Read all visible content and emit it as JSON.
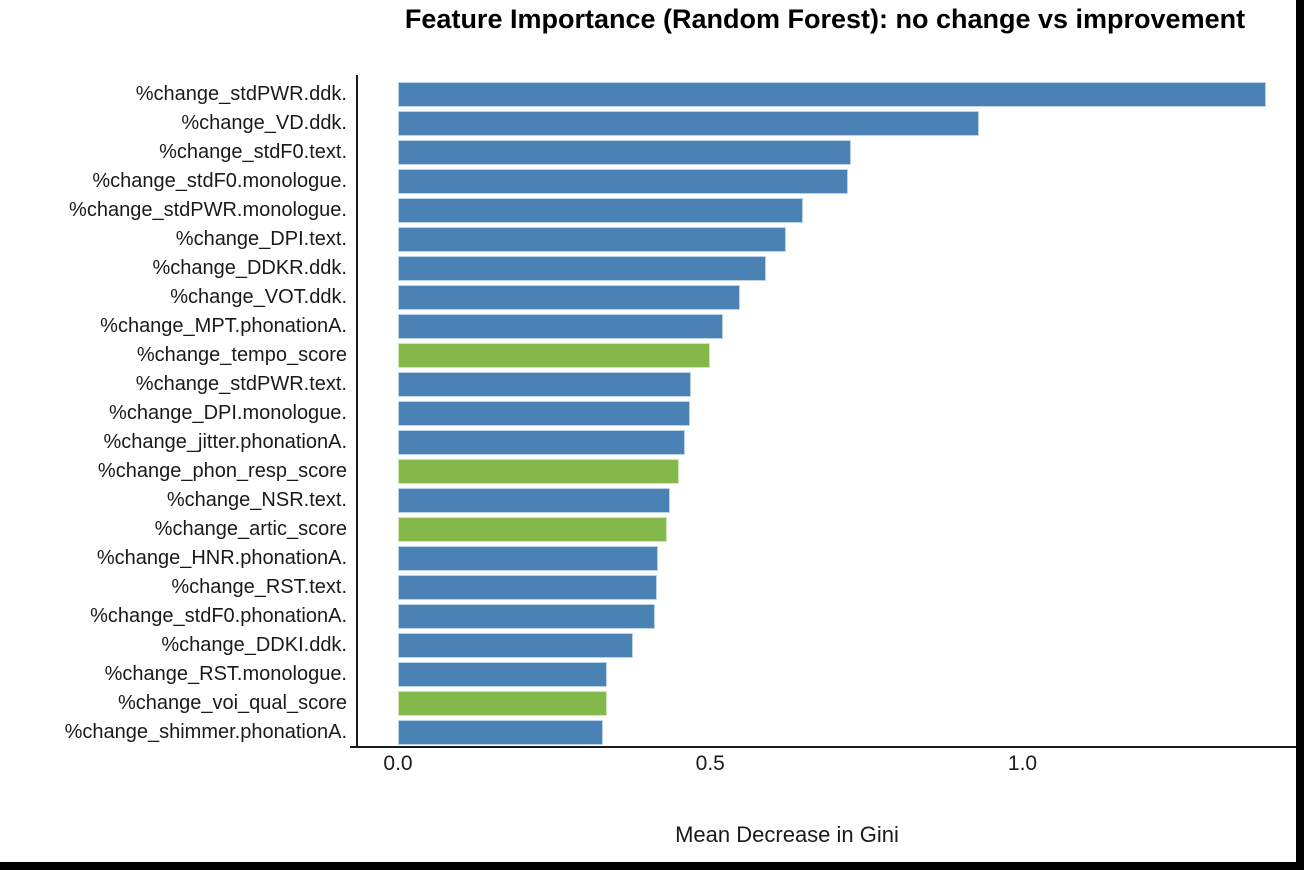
{
  "colors": {
    "acoustic_feature": {
      "fill": "#4A82B5",
      "edge": "#BDD3E6"
    },
    "composite_score": {
      "fill": "#85B84B",
      "edge": "#D2E5B5"
    },
    "axis": "#1a1a1a",
    "frame": "#000000"
  },
  "chart_data": {
    "type": "bar",
    "orientation": "horizontal",
    "title": "Feature Importance (Random Forest): no change vs improvement",
    "xlabel": "Mean Decrease in Gini",
    "ylabel": "",
    "xlim": [
      0,
      1.44
    ],
    "grid": false,
    "legend": false,
    "xticks": [
      {
        "label": "0.0",
        "value": 0.0
      },
      {
        "label": "0.5",
        "value": 0.5
      },
      {
        "label": "1.0",
        "value": 1.0
      }
    ],
    "bars": [
      {
        "label": "%change_stdPWR.ddk.",
        "value": 1.39,
        "group": "acoustic_feature"
      },
      {
        "label": "%change_VD.ddk.",
        "value": 0.93,
        "group": "acoustic_feature"
      },
      {
        "label": "%change_stdF0.text.",
        "value": 0.725,
        "group": "acoustic_feature"
      },
      {
        "label": "%change_stdF0.monologue.",
        "value": 0.72,
        "group": "acoustic_feature"
      },
      {
        "label": "%change_stdPWR.monologue.",
        "value": 0.648,
        "group": "acoustic_feature"
      },
      {
        "label": "%change_DPI.text.",
        "value": 0.622,
        "group": "acoustic_feature"
      },
      {
        "label": "%change_DDKR.ddk.",
        "value": 0.589,
        "group": "acoustic_feature"
      },
      {
        "label": "%change_VOT.ddk.",
        "value": 0.547,
        "group": "acoustic_feature"
      },
      {
        "label": "%change_MPT.phonationA.",
        "value": 0.52,
        "group": "acoustic_feature"
      },
      {
        "label": "%change_tempo_score",
        "value": 0.5,
        "group": "composite_score"
      },
      {
        "label": "%change_stdPWR.text.",
        "value": 0.469,
        "group": "acoustic_feature"
      },
      {
        "label": "%change_DPI.monologue.",
        "value": 0.467,
        "group": "acoustic_feature"
      },
      {
        "label": "%change_jitter.phonationA.",
        "value": 0.46,
        "group": "acoustic_feature"
      },
      {
        "label": "%change_phon_resp_score",
        "value": 0.45,
        "group": "composite_score"
      },
      {
        "label": "%change_NSR.text.",
        "value": 0.435,
        "group": "acoustic_feature"
      },
      {
        "label": "%change_artic_score",
        "value": 0.43,
        "group": "composite_score"
      },
      {
        "label": "%change_HNR.phonationA.",
        "value": 0.416,
        "group": "acoustic_feature"
      },
      {
        "label": "%change_RST.text.",
        "value": 0.414,
        "group": "acoustic_feature"
      },
      {
        "label": "%change_stdF0.phonationA.",
        "value": 0.412,
        "group": "acoustic_feature"
      },
      {
        "label": "%change_DDKI.ddk.",
        "value": 0.376,
        "group": "acoustic_feature"
      },
      {
        "label": "%change_RST.monologue.",
        "value": 0.334,
        "group": "acoustic_feature"
      },
      {
        "label": "%change_voi_qual_score",
        "value": 0.335,
        "group": "composite_score"
      },
      {
        "label": "%change_shimmer.phonationA.",
        "value": 0.329,
        "group": "acoustic_feature"
      }
    ]
  }
}
